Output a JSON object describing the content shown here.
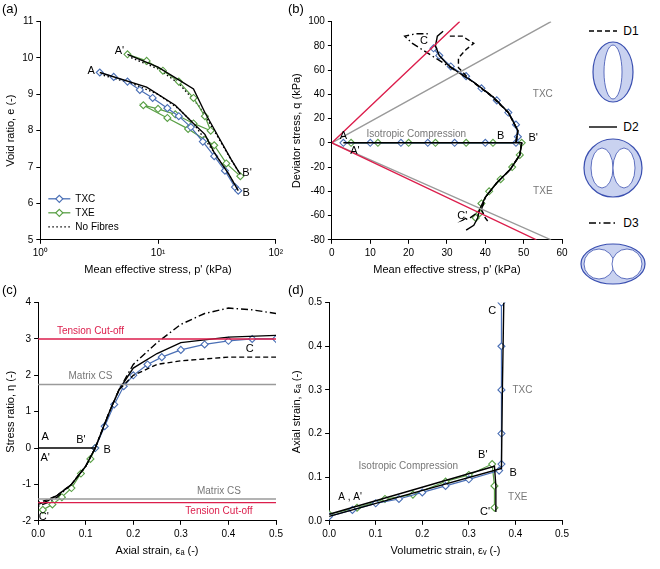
{
  "chart_data": [
    {
      "type": "line",
      "title": "(a)",
      "x_label": "Mean effective stress, p' (kPa)",
      "y_label": "Void ratio, e (-)",
      "log": "x",
      "grid": false,
      "legend": "lower left",
      "xlim": [
        1,
        100
      ],
      "xticks": [
        {
          "value": 1,
          "label": "10⁰"
        },
        {
          "value": 10,
          "label": "10¹"
        },
        {
          "value": 100,
          "label": "10²"
        }
      ],
      "ylim": [
        5,
        11
      ],
      "yticks": [
        5,
        6,
        7,
        8,
        9,
        10,
        11
      ],
      "series": [
        {
          "color": "#000000",
          "line_style": "solid",
          "marker": "none",
          "x": [
            3.2,
            8,
            14,
            20,
            25,
            30,
            40,
            48,
            null,
            5.5,
            10,
            15,
            20,
            25,
            33,
            42,
            50
          ],
          "values": [
            9.6,
            9.2,
            8.7,
            8.2,
            7.9,
            7.4,
            6.8,
            6.35,
            null,
            10.1,
            9.75,
            9.4,
            9.15,
            8.5,
            7.8,
            7.2,
            6.8
          ]
        },
        {
          "name": "TXC",
          "color": "#4a6fb5",
          "line_style": "solid",
          "marker": "diamond",
          "x": [
            3.2,
            4.2,
            5.5,
            7,
            9,
            12,
            15,
            19,
            24,
            30,
            37,
            45,
            48
          ],
          "values": [
            9.6,
            9.48,
            9.35,
            9.12,
            8.9,
            8.62,
            8.4,
            8.1,
            7.7,
            7.3,
            6.9,
            6.45,
            6.35
          ]
        },
        {
          "name": "TXE",
          "color": "#5aa046",
          "line_style": "solid",
          "marker": "diamond",
          "x": [
            5.5,
            8,
            11,
            15,
            20,
            25,
            28,
            20,
            14,
            10,
            7.5,
            12,
            18,
            25,
            30,
            38,
            50
          ],
          "values": [
            10.1,
            9.92,
            9.65,
            9.35,
            8.9,
            8.4,
            8.0,
            8.2,
            8.45,
            8.6,
            8.7,
            8.35,
            8.05,
            7.75,
            7.6,
            7.1,
            6.75
          ]
        },
        {
          "name": "No Fibres",
          "color": "#000000",
          "line_style": "dotted",
          "marker": "none",
          "x": [
            3.2,
            6,
            10,
            15,
            20,
            30,
            40,
            48,
            null,
            5.5,
            10,
            15,
            22,
            30,
            40,
            50
          ],
          "values": [
            9.55,
            9.3,
            9.0,
            8.6,
            8.2,
            7.4,
            6.8,
            6.35,
            null,
            10.05,
            9.7,
            9.3,
            8.7,
            8.0,
            7.3,
            6.8
          ]
        }
      ],
      "annotations": [
        {
          "text": "A",
          "x": 2.7,
          "y": 9.65,
          "color": "#000000"
        },
        {
          "text": "A'",
          "x": 4.7,
          "y": 10.2,
          "color": "#000000"
        },
        {
          "text": "B",
          "x": 56,
          "y": 6.3,
          "color": "#000000"
        },
        {
          "text": "B'",
          "x": 57,
          "y": 6.85,
          "color": "#000000"
        }
      ]
    },
    {
      "type": "line",
      "title": "(b)",
      "x_label": "Mean effective stress, p' (kPa)",
      "y_label": "Deviator stress, q (kPa)",
      "grid": false,
      "xlim": [
        0,
        60
      ],
      "xticks": [
        0,
        10,
        20,
        30,
        40,
        50,
        60
      ],
      "ylim": [
        -80,
        100
      ],
      "yticks": [
        -80,
        -60,
        -40,
        -20,
        0,
        20,
        40,
        60,
        80,
        100
      ],
      "series": [
        {
          "color": "#dc1e4c",
          "line_style": "solid",
          "marker": "none",
          "x": [
            0,
            33.33,
            null,
            0,
            53.33
          ],
          "values": [
            0,
            100,
            null,
            0,
            -80
          ]
        },
        {
          "color": "#9a9a9a",
          "line_style": "solid",
          "marker": "none",
          "x": [
            0,
            57.14,
            null,
            0,
            57.14
          ],
          "values": [
            0,
            100,
            null,
            0,
            -80
          ]
        },
        {
          "color": "#000000",
          "line_style": "dashed",
          "marker": "none",
          "x": [
            48,
            48.5,
            46,
            41,
            36,
            33,
            33,
            35,
            37,
            34,
            30,
            null,
            49.5,
            49,
            46.5,
            43,
            40,
            39,
            40,
            41
          ],
          "values": [
            0,
            10,
            25,
            40,
            52,
            62,
            70,
            77,
            82,
            88,
            88,
            null,
            0,
            -10,
            -22,
            -33,
            -45,
            -55,
            -62,
            -66
          ]
        },
        {
          "color": "#000000",
          "line_style": "solid",
          "marker": "none",
          "x": [
            3,
            48,
            48.5,
            46,
            42,
            37,
            33,
            30,
            28,
            27,
            27.5,
            29,
            null,
            5,
            49.5,
            49,
            46.5,
            43,
            40,
            38.5,
            38,
            37,
            35
          ],
          "values": [
            0,
            0,
            10,
            25,
            38,
            50,
            58,
            65,
            72,
            80,
            88,
            92,
            null,
            0,
            0,
            -10,
            -22,
            -33,
            -45,
            -55,
            -62,
            -68,
            -72
          ]
        },
        {
          "color": "#000000",
          "line_style": "dashdot",
          "marker": "none",
          "x": [
            48,
            48.5,
            46,
            42,
            37,
            33,
            29,
            25,
            21,
            19,
            22,
            25,
            null,
            49.5,
            49,
            46.5,
            43,
            40,
            39,
            36,
            34,
            35
          ],
          "values": [
            0,
            10,
            25,
            38,
            50,
            58,
            66,
            74,
            82,
            88,
            90,
            90,
            null,
            0,
            -10,
            -22,
            -33,
            -45,
            -55,
            -62,
            -64,
            -62
          ]
        },
        {
          "color": "#4a6fb5",
          "line_style": "solid",
          "marker": "diamond",
          "x": [
            3,
            10,
            18,
            25,
            32,
            40,
            48,
            48.5,
            48,
            46,
            43,
            39,
            35,
            31,
            28,
            26.5
          ],
          "values": [
            0,
            0,
            0,
            0,
            0,
            0,
            0,
            5,
            15,
            25,
            35,
            45,
            55,
            63,
            72,
            78
          ]
        },
        {
          "color": "#5aa046",
          "line_style": "solid",
          "marker": "diamond",
          "x": [
            5,
            12,
            20,
            27,
            35,
            42,
            49.5,
            49,
            47,
            44,
            41,
            39,
            38.5,
            37.5
          ],
          "values": [
            0,
            0,
            0,
            0,
            0,
            0,
            0,
            -10,
            -20,
            -30,
            -40,
            -50,
            -58,
            -62
          ]
        }
      ],
      "annotations": [
        {
          "text": "A",
          "x": 3,
          "y": 6,
          "color": "#000000"
        },
        {
          "text": "A'",
          "x": 6,
          "y": -7,
          "color": "#000000"
        },
        {
          "text": "B",
          "x": 44,
          "y": 6,
          "color": "#000000"
        },
        {
          "text": "B'",
          "x": 52.5,
          "y": 4,
          "color": "#000000"
        },
        {
          "text": "C",
          "x": 24,
          "y": 84,
          "color": "#000000"
        },
        {
          "text": "C'",
          "x": 34,
          "y": -60,
          "color": "#000000"
        },
        {
          "text": "Isotropic Compression",
          "x": 22,
          "y": 7,
          "color": "#777777"
        },
        {
          "text": "TXC",
          "x": 55,
          "y": 40,
          "color": "#777777"
        },
        {
          "text": "TXE",
          "x": 55,
          "y": -40,
          "color": "#777777"
        }
      ]
    },
    {
      "type": "line",
      "title": "(c)",
      "x_label": "Axial strain, εₐ (-)",
      "y_label": "Stress ratio, η (-)",
      "grid": false,
      "xlim": [
        0,
        0.5
      ],
      "xticks": [
        {
          "value": 0,
          "label": "0.0"
        },
        0.1,
        0.2,
        0.3,
        0.4,
        0.5
      ],
      "ylim": [
        -2,
        4
      ],
      "yticks": [
        -2,
        -1,
        0,
        1,
        2,
        3,
        4
      ],
      "series": [
        {
          "color": "#dc1e4c",
          "line_style": "solid",
          "marker": "none",
          "x": [
            0,
            0.5,
            null,
            0,
            0.5
          ],
          "values": [
            3,
            3,
            null,
            -1.5,
            -1.5
          ]
        },
        {
          "color": "#9a9a9a",
          "line_style": "solid",
          "marker": "none",
          "x": [
            0,
            0.5,
            null,
            0,
            0.5
          ],
          "values": [
            1.75,
            1.75,
            null,
            -1.4,
            -1.4
          ]
        },
        {
          "color": "#000000",
          "line_style": "dashed",
          "marker": "none",
          "x": [
            0.12,
            0.15,
            0.17,
            0.2,
            0.25,
            0.3,
            0.4,
            0.5,
            null,
            0.12,
            0.1,
            0.07,
            0.04,
            0.02,
            0
          ],
          "values": [
            0,
            1.0,
            1.6,
            2.0,
            2.3,
            2.4,
            2.5,
            2.5,
            null,
            0,
            -0.5,
            -1.0,
            -1.3,
            -1.42,
            -1.5
          ]
        },
        {
          "color": "#000000",
          "line_style": "solid",
          "marker": "none",
          "x": [
            0,
            0.12,
            0.15,
            0.17,
            0.2,
            0.25,
            0.3,
            0.4,
            0.5,
            null,
            0.12,
            0.1,
            0.07,
            0.04,
            0.02,
            0
          ],
          "values": [
            0,
            0,
            1.0,
            1.6,
            2.2,
            2.6,
            2.9,
            3.05,
            3.1,
            null,
            0,
            -0.5,
            -1.0,
            -1.3,
            -1.45,
            -1.55
          ]
        },
        {
          "color": "#000000",
          "line_style": "dashdot",
          "marker": "none",
          "x": [
            0.12,
            0.15,
            0.17,
            0.2,
            0.25,
            0.3,
            0.35,
            0.4,
            0.45,
            0.5,
            null,
            0.12,
            0.1,
            0.07,
            0.04,
            0.02,
            0
          ],
          "values": [
            0,
            1.0,
            1.6,
            2.3,
            2.9,
            3.4,
            3.7,
            3.85,
            3.8,
            3.7,
            null,
            0,
            -0.5,
            -1.0,
            -1.35,
            -1.5,
            -1.6
          ]
        },
        {
          "color": "#4a6fb5",
          "line_style": "solid",
          "marker": "diamond",
          "x": [
            0.12,
            0.14,
            0.16,
            0.18,
            0.2,
            0.23,
            0.26,
            0.3,
            0.35,
            0.4,
            0.45,
            0.5
          ],
          "values": [
            0,
            0.6,
            1.2,
            1.7,
            2.0,
            2.3,
            2.5,
            2.7,
            2.85,
            2.95,
            3.0,
            3.0
          ]
        },
        {
          "color": "#5aa046",
          "line_style": "solid",
          "marker": "diamond",
          "x": [
            0.12,
            0.11,
            0.09,
            0.07,
            0.05,
            0.03,
            0.01
          ],
          "values": [
            0,
            -0.3,
            -0.7,
            -1.1,
            -1.35,
            -1.55,
            -1.7
          ]
        }
      ],
      "annotations": [
        {
          "text": "A",
          "x": 0.015,
          "y": 0.3,
          "color": "#000000"
        },
        {
          "text": "A'",
          "x": 0.015,
          "y": -0.28,
          "color": "#000000"
        },
        {
          "text": "B",
          "x": 0.145,
          "y": -0.05,
          "color": "#000000"
        },
        {
          "text": "B'",
          "x": 0.09,
          "y": 0.22,
          "color": "#000000"
        },
        {
          "text": "C",
          "x": 0.445,
          "y": 2.72,
          "color": "#000000"
        },
        {
          "text": "C'",
          "x": 0.012,
          "y": -1.9,
          "color": "#000000"
        },
        {
          "text": "Tension Cut-off",
          "x": 0.11,
          "y": 3.22,
          "color": "#dc1e4c"
        },
        {
          "text": "Matrix CS",
          "x": 0.11,
          "y": 1.97,
          "color": "#777777"
        },
        {
          "text": "Matrix CS",
          "x": 0.38,
          "y": -1.2,
          "color": "#777777"
        },
        {
          "text": "Tension Cut-off",
          "x": 0.38,
          "y": -1.74,
          "color": "#dc1e4c"
        }
      ]
    },
    {
      "type": "line",
      "title": "(d)",
      "x_label": "Volumetric strain, εᵥ (-)",
      "y_label": "Axial strain, εₐ (-)",
      "grid": false,
      "xlim": [
        0,
        0.5
      ],
      "xticks": [
        {
          "value": 0,
          "label": "0.0"
        },
        0.1,
        0.2,
        0.3,
        0.4,
        0.5
      ],
      "ylim": [
        0,
        0.5
      ],
      "yticks": [
        {
          "value": 0,
          "label": "0.0"
        },
        0.1,
        0.2,
        0.3,
        0.4,
        0.5
      ],
      "series": [
        {
          "color": "#000000",
          "line_style": "solid",
          "marker": "none",
          "x": [
            0,
            0.37,
            0.372,
            0.375,
            null,
            0,
            0.355,
            0.358,
            0.358
          ],
          "values": [
            0.01,
            0.12,
            0.3,
            0.5,
            null,
            0.015,
            0.125,
            0.08,
            0.02
          ]
        },
        {
          "color": "#4a6fb5",
          "line_style": "solid",
          "marker": "diamond",
          "x": [
            0,
            0.05,
            0.1,
            0.15,
            0.2,
            0.25,
            0.3,
            0.365,
            0.37,
            0.37,
            0.37,
            0.37,
            0.37
          ],
          "values": [
            0.01,
            0.025,
            0.04,
            0.05,
            0.065,
            0.08,
            0.095,
            0.115,
            0.13,
            0.2,
            0.3,
            0.4,
            0.5
          ]
        },
        {
          "color": "#5aa046",
          "line_style": "solid",
          "marker": "diamond",
          "x": [
            0,
            0.06,
            0.12,
            0.18,
            0.25,
            0.3,
            0.35,
            0.355,
            0.355
          ],
          "values": [
            0.015,
            0.03,
            0.05,
            0.06,
            0.09,
            0.105,
            0.13,
            0.08,
            0.03
          ]
        }
      ],
      "annotations": [
        {
          "text": "A , A'",
          "x": 0.045,
          "y": 0.055,
          "color": "#000000"
        },
        {
          "text": "B",
          "x": 0.395,
          "y": 0.11,
          "color": "#000000"
        },
        {
          "text": "B'",
          "x": 0.33,
          "y": 0.15,
          "color": "#000000"
        },
        {
          "text": "C",
          "x": 0.35,
          "y": 0.48,
          "color": "#000000"
        },
        {
          "text": "C'",
          "x": 0.335,
          "y": 0.02,
          "color": "#000000"
        },
        {
          "text": "Isotropic Compression",
          "x": 0.17,
          "y": 0.125,
          "color": "#777777"
        },
        {
          "text": "TXC",
          "x": 0.415,
          "y": 0.3,
          "color": "#777777"
        },
        {
          "text": "TXE",
          "x": 0.405,
          "y": 0.055,
          "color": "#777777"
        }
      ]
    }
  ],
  "side_legend": [
    {
      "name": "D1",
      "line_style": "dashed",
      "color": "#000000"
    },
    {
      "name": "D2",
      "line_style": "solid",
      "color": "#000000"
    },
    {
      "name": "D3",
      "line_style": "dashdot",
      "color": "#000000"
    }
  ]
}
